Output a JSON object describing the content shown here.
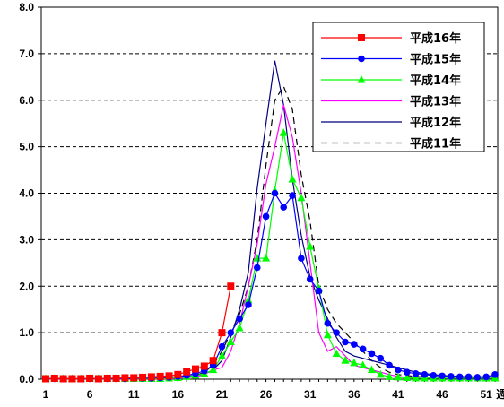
{
  "chart_data": {
    "type": "line",
    "x_unit": "週",
    "ylim": [
      0,
      8
    ],
    "yticks": [
      "0.0",
      "1.0",
      "2.0",
      "3.0",
      "4.0",
      "5.0",
      "6.0",
      "7.0",
      "8.0"
    ],
    "xlim": [
      1,
      52
    ],
    "xticks": [
      1,
      6,
      11,
      16,
      21,
      26,
      31,
      36,
      41,
      46,
      51
    ],
    "grid": "horizontal-dashed",
    "legend_position": "top-right",
    "series": [
      {
        "name": "平成16年",
        "color": "#ff0000",
        "dash": "",
        "marker": "square",
        "values": [
          0.01,
          0.02,
          0.01,
          0.01,
          0.01,
          0.02,
          0.01,
          0.02,
          0.02,
          0.03,
          0.03,
          0.04,
          0.05,
          0.06,
          0.07,
          0.1,
          0.16,
          0.22,
          0.28,
          0.4,
          1.0,
          2.0
        ]
      },
      {
        "name": "平成15年",
        "color": "#0000ff",
        "dash": "",
        "marker": "circle",
        "values": [
          0.01,
          0.01,
          0.01,
          0.01,
          0.01,
          0.01,
          0.01,
          0.01,
          0.01,
          0.01,
          0.02,
          0.02,
          0.02,
          0.03,
          0.04,
          0.06,
          0.08,
          0.12,
          0.18,
          0.3,
          0.7,
          1.0,
          1.3,
          1.6,
          2.4,
          3.5,
          4.0,
          3.7,
          3.95,
          2.6,
          2.15,
          1.9,
          1.2,
          1.0,
          0.8,
          0.75,
          0.65,
          0.55,
          0.45,
          0.3,
          0.2,
          0.15,
          0.12,
          0.1,
          0.08,
          0.07,
          0.06,
          0.05,
          0.05,
          0.04,
          0.05,
          0.1
        ]
      },
      {
        "name": "平成14年",
        "color": "#00ff00",
        "dash": "",
        "marker": "triangle",
        "values": [
          0.01,
          0.01,
          0.01,
          0.01,
          0.01,
          0.01,
          0.01,
          0.01,
          0.01,
          0.01,
          0.01,
          0.01,
          0.01,
          0.01,
          0.02,
          0.03,
          0.05,
          0.08,
          0.12,
          0.2,
          0.5,
          0.8,
          1.1,
          1.7,
          2.6,
          2.6,
          4.05,
          5.3,
          4.3,
          3.9,
          2.85,
          1.95,
          0.95,
          0.55,
          0.4,
          0.35,
          0.3,
          0.2,
          0.1,
          0.05,
          0.04,
          0.03,
          0.02,
          0.02,
          0.02,
          0.02,
          0.02,
          0.02,
          0.02,
          0.02,
          0.02,
          0.02
        ]
      },
      {
        "name": "平成13年",
        "color": "#ff00ff",
        "dash": "",
        "marker": "none",
        "values": [
          0.01,
          0.01,
          0.01,
          0.01,
          0.01,
          0.01,
          0.01,
          0.01,
          0.01,
          0.01,
          0.01,
          0.01,
          0.01,
          0.01,
          0.01,
          0.02,
          0.03,
          0.05,
          0.1,
          0.2,
          0.25,
          0.6,
          1.2,
          2.0,
          2.9,
          4.2,
          5.0,
          5.9,
          5.2,
          4.0,
          2.5,
          1.0,
          0.6,
          0.7,
          0.5,
          0.3,
          0.25,
          0.2,
          0.15,
          0.1,
          0.06,
          0.04,
          0.03,
          0.02,
          0.02,
          0.02,
          0.02,
          0.02,
          0.02,
          0.02,
          0.02,
          0.02
        ]
      },
      {
        "name": "平成12年",
        "color": "#000080",
        "dash": "",
        "marker": "none",
        "values": [
          0.01,
          0.01,
          0.01,
          0.01,
          0.01,
          0.01,
          0.01,
          0.01,
          0.01,
          0.01,
          0.01,
          0.02,
          0.02,
          0.03,
          0.04,
          0.05,
          0.06,
          0.08,
          0.12,
          0.2,
          0.4,
          0.9,
          1.5,
          2.3,
          4.1,
          5.5,
          6.85,
          5.9,
          4.3,
          3.1,
          2.2,
          1.7,
          1.3,
          0.9,
          0.6,
          0.5,
          0.45,
          0.4,
          0.35,
          0.3,
          0.25,
          0.2,
          0.15,
          0.12,
          0.1,
          0.08,
          0.07,
          0.06,
          0.05,
          0.05,
          0.05,
          0.05
        ]
      },
      {
        "name": "平成11年",
        "color": "#000000",
        "dash": "7,5",
        "marker": "none",
        "values": [
          0.01,
          0.01,
          0.01,
          0.01,
          0.01,
          0.01,
          0.01,
          0.01,
          0.01,
          0.01,
          0.01,
          0.01,
          0.01,
          0.01,
          0.02,
          0.03,
          0.05,
          0.08,
          0.15,
          0.3,
          0.6,
          1.0,
          1.4,
          2.0,
          3.0,
          4.6,
          6.0,
          6.3,
          5.8,
          4.4,
          3.4,
          2.0,
          1.5,
          1.2,
          1.0,
          0.8,
          0.6,
          0.4,
          0.25,
          0.15,
          0.1,
          0.08,
          0.06,
          0.05,
          0.04,
          0.04,
          0.03,
          0.03,
          0.03,
          0.03,
          0.03,
          0.03
        ]
      }
    ]
  }
}
